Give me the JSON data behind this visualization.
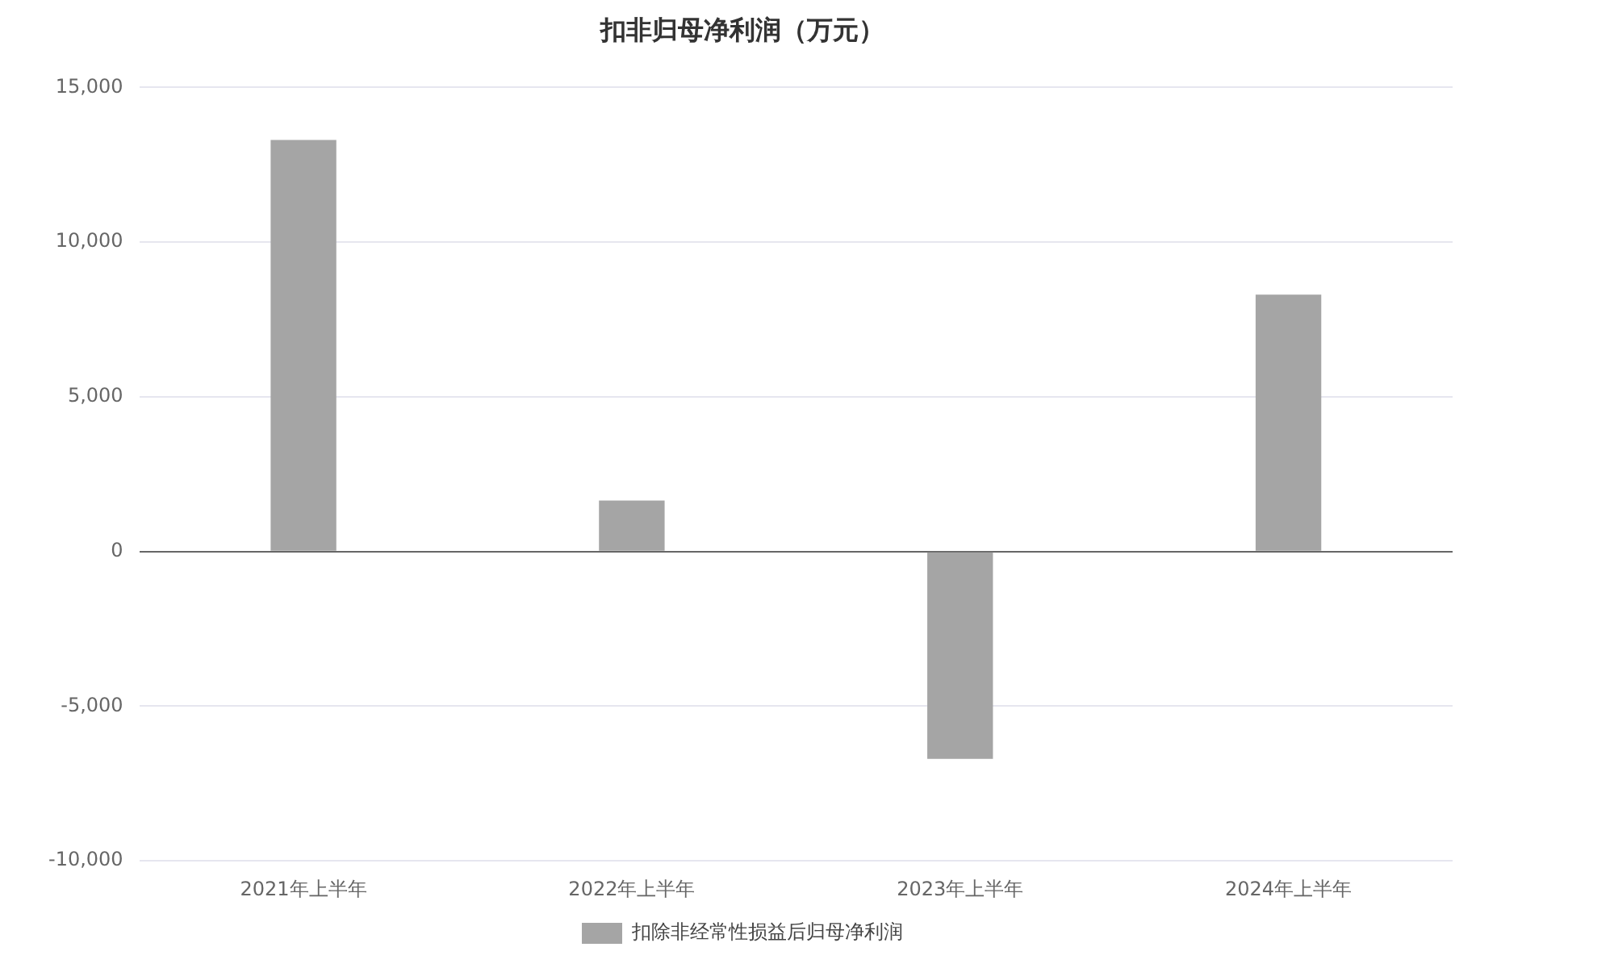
{
  "chart_data": {
    "type": "bar",
    "title": "扣非归母净利润（万元）",
    "categories": [
      "2021年上半年",
      "2022年上半年",
      "2023年上半年",
      "2024年上半年"
    ],
    "series": [
      {
        "name": "扣除非经常性损益后归母净利润",
        "color": "#a5a5a5",
        "values": [
          13300,
          1650,
          -6700,
          8300
        ]
      }
    ],
    "ylim": [
      -10000,
      15000
    ],
    "yticks": [
      {
        "value": -10000,
        "label": "-10,000"
      },
      {
        "value": -5000,
        "label": "-5,000"
      },
      0,
      {
        "value": 5000,
        "label": "5,000"
      },
      {
        "value": 10000,
        "label": "10,000"
      },
      {
        "value": 15000,
        "label": "15,000"
      }
    ],
    "grid": "y",
    "legend": "bottom"
  }
}
